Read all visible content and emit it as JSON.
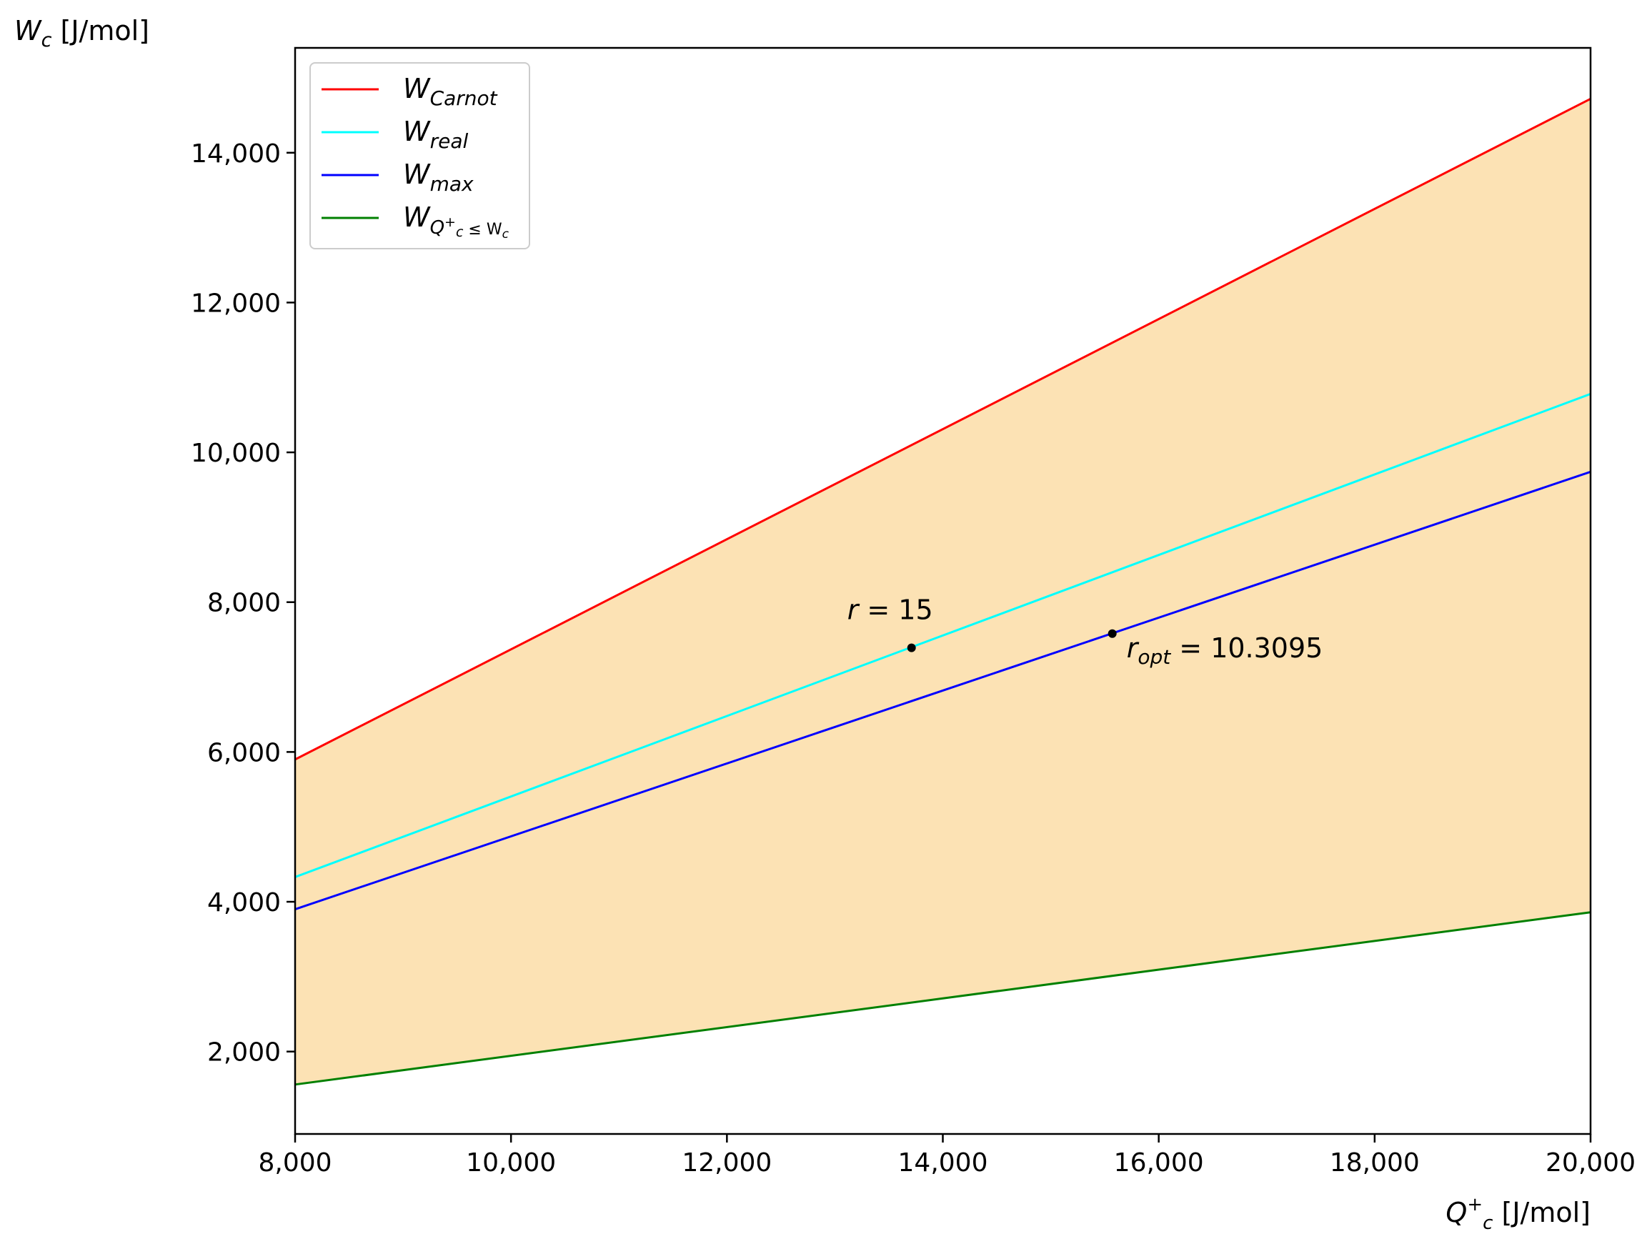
{
  "chart_data": {
    "type": "line",
    "x": [
      8000,
      20000
    ],
    "xlim": [
      8000,
      20000
    ],
    "ylim": [
      900,
      15400
    ],
    "xticks": [
      8000,
      10000,
      12000,
      14000,
      16000,
      18000,
      20000
    ],
    "xtick_labels": [
      "8,000",
      "10,000",
      "12,000",
      "14,000",
      "16,000",
      "18,000",
      "20,000"
    ],
    "yticks": [
      2000,
      4000,
      6000,
      8000,
      10000,
      12000,
      14000
    ],
    "ytick_labels": [
      "2,000",
      "4,000",
      "6,000",
      "8,000",
      "10,000",
      "12,000",
      "14,000"
    ],
    "xlabel": {
      "main": "Q",
      "sub": "c",
      "sup": "+",
      "unit": " [J/mol]"
    },
    "ylabel": {
      "main": "W",
      "sub": "c",
      "unit": " [J/mol]"
    },
    "legend_position": "top-left",
    "grid": false,
    "fill_between": {
      "upper": "W_Carnot",
      "lower": "W_Qc_le_Wc",
      "color": "#fce2b4"
    },
    "series": [
      {
        "id": "W_Carnot",
        "name": {
          "main": "W",
          "sub": "Carnot"
        },
        "color": "#ff0000",
        "values": [
          5900,
          14720
        ]
      },
      {
        "id": "W_real",
        "name": {
          "main": "W",
          "sub": "real"
        },
        "color": "#00ffff",
        "values": [
          4330,
          10780
        ]
      },
      {
        "id": "W_max",
        "name": {
          "main": "W",
          "sub": "max"
        },
        "color": "#0000ff",
        "values": [
          3900,
          9740
        ]
      },
      {
        "id": "W_Qc_le_Wc",
        "name": {
          "main": "W",
          "sub": "Q",
          "subsub": "c",
          "subsup": "+",
          "subtail": " ≤ W",
          "subtailsub": "c"
        },
        "color": "#008000",
        "values": [
          1560,
          3860
        ]
      }
    ],
    "points": [
      {
        "x": 13710,
        "y": 7390,
        "label_main": "r",
        "label_sub": "",
        "label_tail": " = 15",
        "placement": "above"
      },
      {
        "x": 15570,
        "y": 7580,
        "label_main": "r",
        "label_sub": "opt",
        "label_tail": " = 10.3095",
        "placement": "below-right"
      }
    ]
  }
}
